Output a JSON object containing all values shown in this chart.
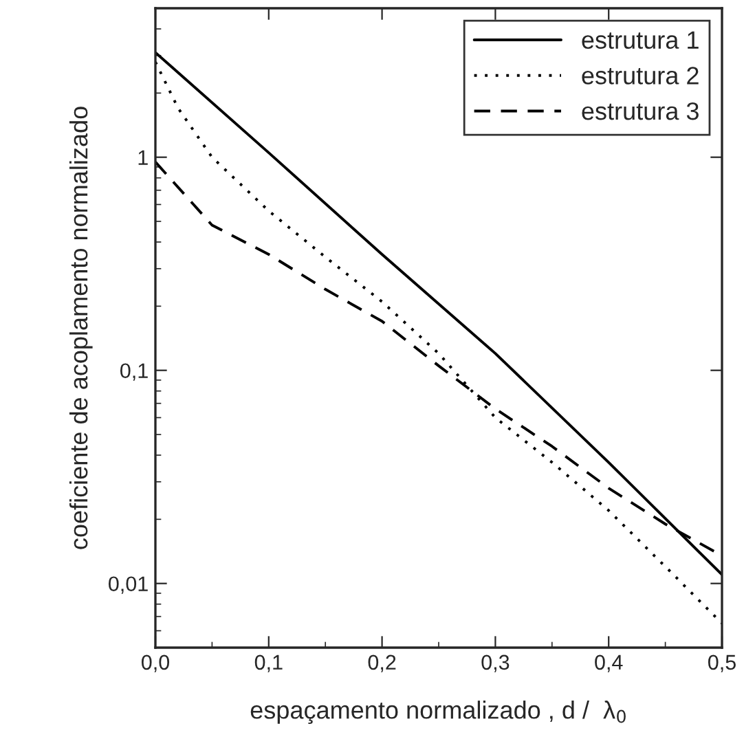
{
  "chart_data": {
    "type": "line",
    "xlabel": "espaçamento normalizado , d /  λ$_{0}$",
    "ylabel": "coeficiente de acoplamento normalizado",
    "log": "y",
    "xlim": [
      0,
      0.5
    ],
    "ylim": [
      0.005,
      5
    ],
    "xticks": [
      {
        "value": 0,
        "label": "0,0"
      },
      {
        "value": 0.1,
        "label": "0,1"
      },
      {
        "value": 0.2,
        "label": "0,2"
      },
      {
        "value": 0.3,
        "label": "0,3"
      },
      {
        "value": 0.4,
        "label": "0,4"
      },
      {
        "value": 0.5,
        "label": "0,5"
      }
    ],
    "yticks": [
      {
        "value": 0.01,
        "label": "0,01"
      },
      {
        "value": 0.1,
        "label": "0,1"
      },
      1
    ],
    "grid": false,
    "legend": "top right",
    "series": [
      {
        "name": "estrutura 1",
        "color": "#000000",
        "line_style": "solid",
        "x": [
          0,
          0.1,
          0.2,
          0.3,
          0.4,
          0.5
        ],
        "values": [
          3.1,
          1.05,
          0.35,
          0.12,
          0.037,
          0.011
        ]
      },
      {
        "name": "estrutura 2",
        "color": "#000000",
        "line_style": "dotted",
        "x": [
          0,
          0.02,
          0.05,
          0.1,
          0.15,
          0.2,
          0.25,
          0.3,
          0.35,
          0.4,
          0.45,
          0.5
        ],
        "values": [
          2.8,
          1.7,
          1.0,
          0.56,
          0.34,
          0.21,
          0.12,
          0.06,
          0.037,
          0.022,
          0.012,
          0.0065
        ]
      },
      {
        "name": "estrutura 3",
        "color": "#000000",
        "line_style": "dashed",
        "x": [
          0,
          0.05,
          0.1,
          0.15,
          0.2,
          0.25,
          0.3,
          0.35,
          0.4,
          0.45,
          0.5
        ],
        "values": [
          0.95,
          0.48,
          0.35,
          0.24,
          0.17,
          0.105,
          0.066,
          0.044,
          0.028,
          0.019,
          0.0135
        ]
      }
    ]
  }
}
